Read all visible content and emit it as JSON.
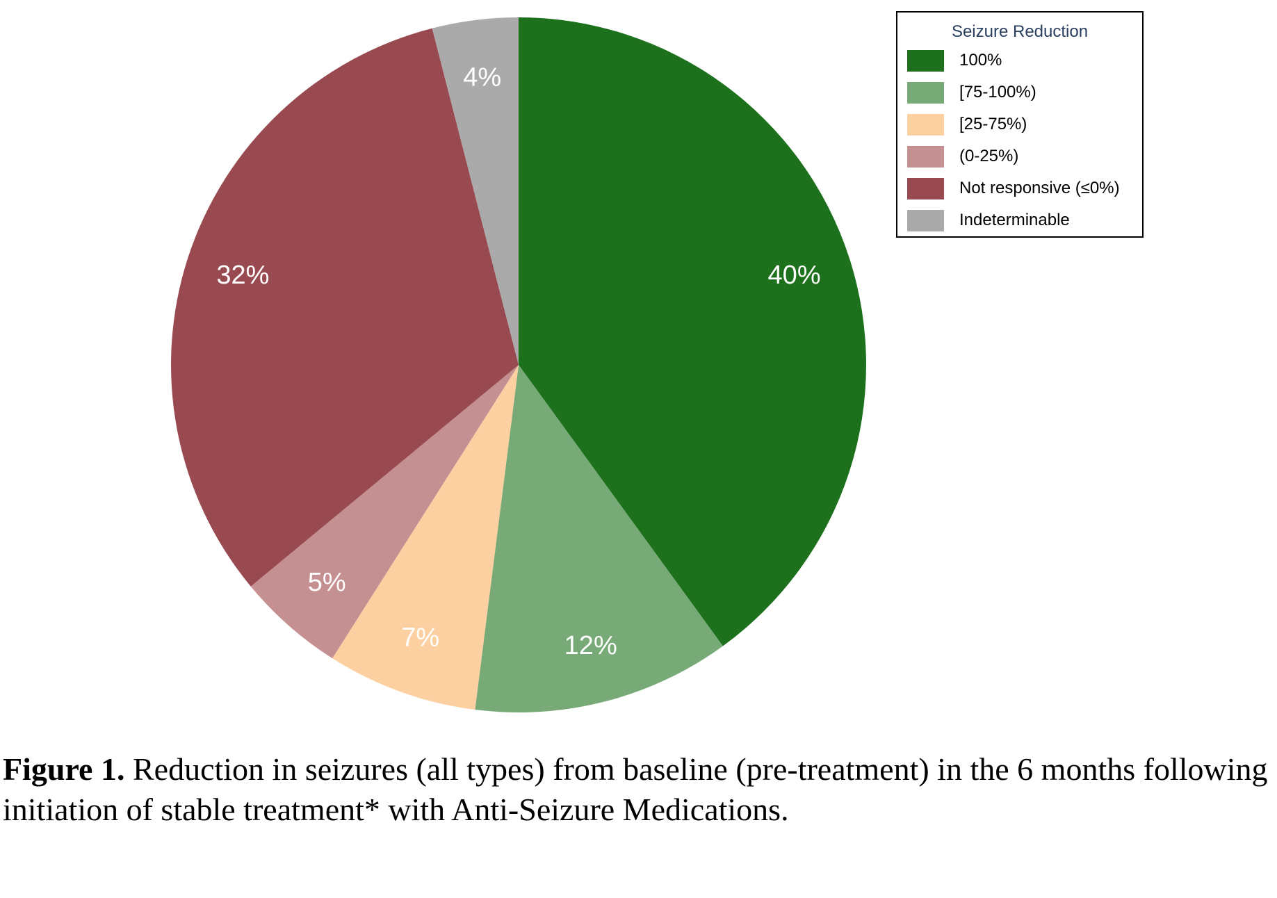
{
  "chart_data": {
    "type": "pie",
    "legend_title": "Seizure Reduction",
    "legend_position": "top-right",
    "slices": [
      {
        "label": "100%",
        "value": 40,
        "display": "40%",
        "color": "#1d711d"
      },
      {
        "label": "[75-100%)",
        "value": 12,
        "display": "12%",
        "color": "#77aa77"
      },
      {
        "label": "[25-75%)",
        "value": 7,
        "display": "7%",
        "color": "#fdd0a2"
      },
      {
        "label": "(0-25%)",
        "value": 5,
        "display": "5%",
        "color": "#c49092"
      },
      {
        "label": "Not responsive (≤0%)",
        "value": 32,
        "display": "32%",
        "color": "#994a50"
      },
      {
        "label": "Indeterminable",
        "value": 4,
        "display": "4%",
        "color": "#aaaaaa"
      }
    ]
  },
  "caption": {
    "bold": "Figure 1.",
    "text": " Reduction in seizures (all types) from baseline (pre-treatment) in the 6 months following initiation of stable treatment* with Anti-Seizure Medications."
  }
}
